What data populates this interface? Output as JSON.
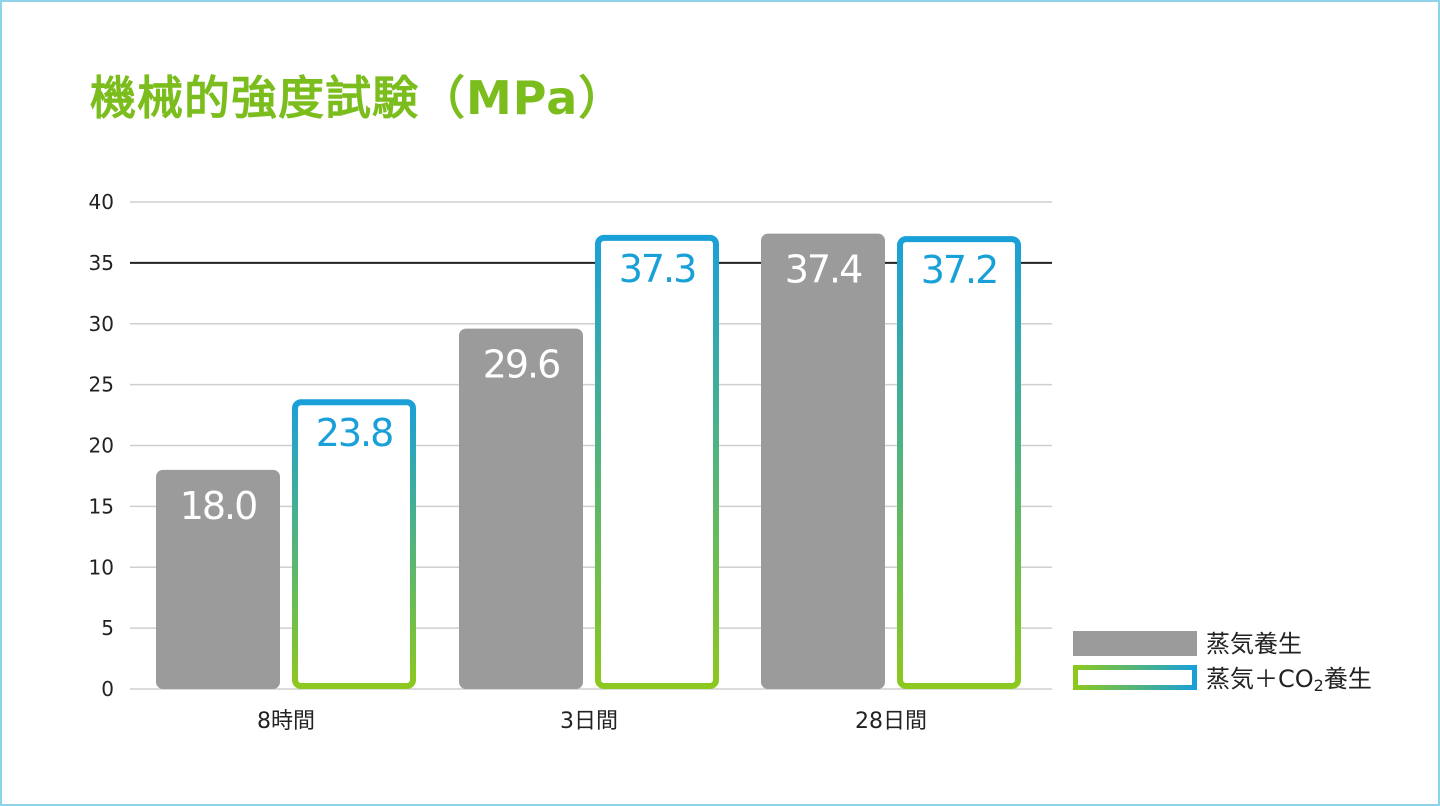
{
  "title": "機械的強度試験（MPa）",
  "colors": {
    "title": "#7cbd1e",
    "steam": "#9b9b9b",
    "co2_top": "#1aa0d8",
    "co2_bottom": "#8cc81e",
    "grid": "#cfcfcf",
    "highlight_line": "#222222",
    "frame": "#8fd3e8"
  },
  "chart_data": {
    "type": "bar",
    "categories": [
      "8時間",
      "3日間",
      "28日間"
    ],
    "series": [
      {
        "name": "蒸気養生",
        "values": [
          18.0,
          29.6,
          37.4
        ],
        "labels": [
          "18.0",
          "29.6",
          "37.4"
        ]
      },
      {
        "name": "蒸気＋CO2養生",
        "values": [
          23.8,
          37.3,
          37.2
        ],
        "labels": [
          "23.8",
          "37.3",
          "37.2"
        ]
      }
    ],
    "ylim": [
      0,
      40
    ],
    "yticks": [
      "0",
      "5",
      "10",
      "15",
      "20",
      "25",
      "30",
      "35",
      "40"
    ],
    "reference_line": 35,
    "grid": true,
    "legend_position": "bottom-right"
  }
}
